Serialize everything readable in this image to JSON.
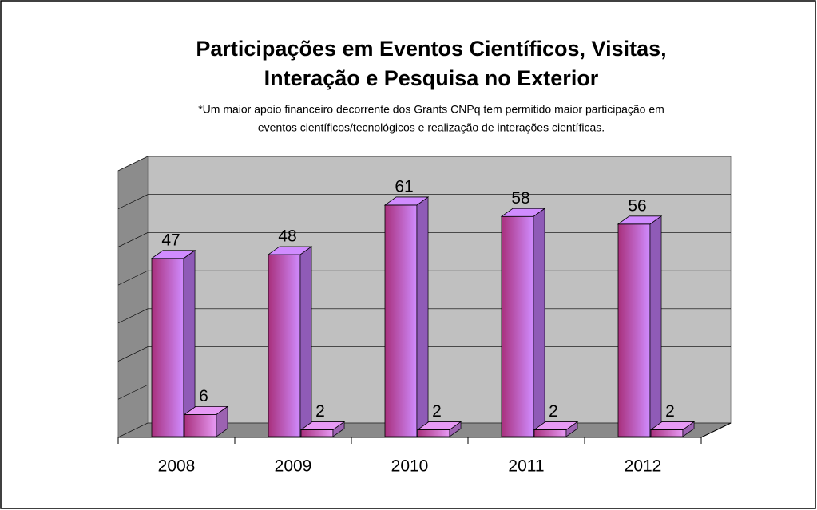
{
  "chart_data": {
    "type": "bar3d",
    "title": "Participações em Eventos Científicos, Visitas,",
    "title_line2": "Interação e Pesquisa no Exterior",
    "subtitle": "*Um maior apoio financeiro decorrente dos Grants CNPq tem permitido maior participação em",
    "subtitle_line2": "eventos científicos/tecnológicos e realização de interações científicas.",
    "categories": [
      "2008",
      "2009",
      "2010",
      "2011",
      "2012"
    ],
    "series": [
      {
        "color": "#d08cff",
        "values": [
          47,
          48,
          61,
          58,
          56
        ]
      },
      {
        "color": "#e79af5",
        "values": [
          6,
          2,
          2,
          2,
          2
        ]
      }
    ],
    "ylim": [
      0,
      70
    ],
    "yticks": [
      0,
      10,
      20,
      30,
      40,
      50,
      60,
      70
    ],
    "grid": true
  }
}
